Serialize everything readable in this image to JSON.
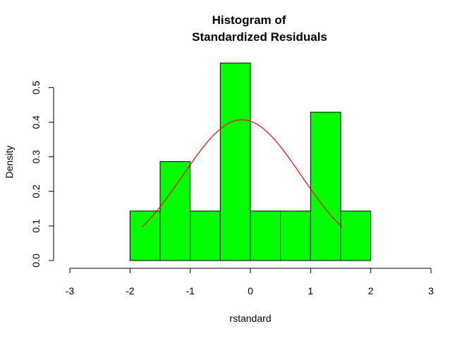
{
  "chart_data": {
    "type": "bar",
    "title_line1": "Histogram of",
    "title_line2": "Standardized Residuals",
    "xlabel": "rstandard",
    "ylabel": "Density",
    "xlim": [
      -3,
      3
    ],
    "ylim": [
      0,
      0.57
    ],
    "x_ticks": [
      "-3",
      "-2",
      "-1",
      "0",
      "1",
      "2",
      "3"
    ],
    "y_ticks": [
      "0.0",
      "0.1",
      "0.2",
      "0.3",
      "0.4",
      "0.5"
    ],
    "bins": [
      {
        "from": -2.0,
        "to": -1.5,
        "density": 0.143
      },
      {
        "from": -1.5,
        "to": -1.0,
        "density": 0.286
      },
      {
        "from": -1.0,
        "to": -0.5,
        "density": 0.143
      },
      {
        "from": -0.5,
        "to": 0.0,
        "density": 0.571
      },
      {
        "from": 0.0,
        "to": 0.5,
        "density": 0.143
      },
      {
        "from": 0.5,
        "to": 1.0,
        "density": 0.143
      },
      {
        "from": 1.0,
        "to": 1.5,
        "density": 0.429
      },
      {
        "from": 1.5,
        "to": 2.0,
        "density": 0.143
      }
    ],
    "curve": {
      "type": "normal-density",
      "mean": -0.14,
      "sd": 0.98,
      "x_from": -1.8,
      "x_to": 1.52
    },
    "colors": {
      "bar_fill": "#00ff00",
      "bar_stroke": "#000000",
      "curve": "#ff0000"
    },
    "grid": false,
    "legend": "none"
  }
}
